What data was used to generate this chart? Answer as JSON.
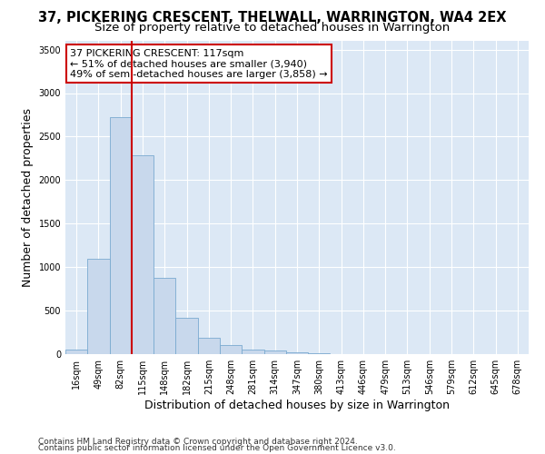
{
  "title": "37, PICKERING CRESCENT, THELWALL, WARRINGTON, WA4 2EX",
  "subtitle": "Size of property relative to detached houses in Warrington",
  "xlabel": "Distribution of detached houses by size in Warrington",
  "ylabel": "Number of detached properties",
  "footer_line1": "Contains HM Land Registry data © Crown copyright and database right 2024.",
  "footer_line2": "Contains public sector information licensed under the Open Government Licence v3.0.",
  "bin_labels": [
    "16sqm",
    "49sqm",
    "82sqm",
    "115sqm",
    "148sqm",
    "182sqm",
    "215sqm",
    "248sqm",
    "281sqm",
    "314sqm",
    "347sqm",
    "380sqm",
    "413sqm",
    "446sqm",
    "479sqm",
    "513sqm",
    "546sqm",
    "579sqm",
    "612sqm",
    "645sqm",
    "678sqm"
  ],
  "bar_values": [
    50,
    1100,
    2720,
    2280,
    880,
    415,
    185,
    100,
    55,
    40,
    20,
    8,
    3,
    2,
    1,
    0,
    0,
    0,
    0,
    0,
    0
  ],
  "bar_color": "#c8d8ec",
  "bar_edge_color": "#7aaad0",
  "red_line_x": 2.5,
  "annotation_text_line1": "37 PICKERING CRESCENT: 117sqm",
  "annotation_text_line2": "← 51% of detached houses are smaller (3,940)",
  "annotation_text_line3": "49% of semi-detached houses are larger (3,858) →",
  "annotation_box_color": "white",
  "annotation_box_edge_color": "#cc0000",
  "red_line_color": "#cc0000",
  "ylim": [
    0,
    3600
  ],
  "yticks": [
    0,
    500,
    1000,
    1500,
    2000,
    2500,
    3000,
    3500
  ],
  "background_color": "#dce8f5",
  "grid_color": "white",
  "title_fontsize": 10.5,
  "subtitle_fontsize": 9.5,
  "axis_label_fontsize": 9,
  "tick_fontsize": 7,
  "annotation_fontsize": 8,
  "footer_fontsize": 6.5
}
